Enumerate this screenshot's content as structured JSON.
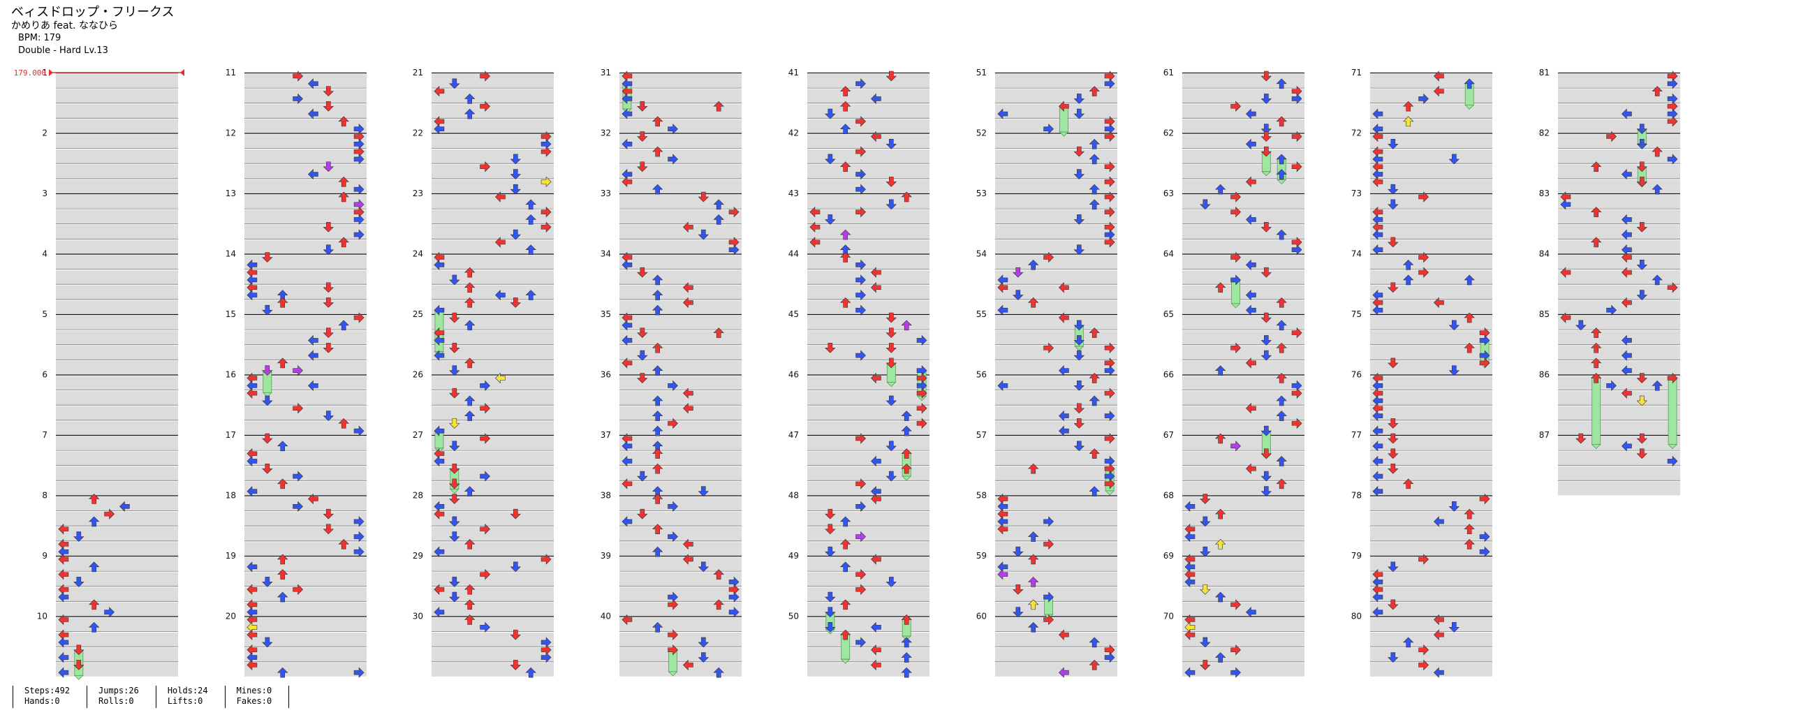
{
  "song": {
    "title": "ベィスドロップ・フリークス",
    "artist": "かめりあ feat. ななひら",
    "bpm": "BPM: 179",
    "difficulty": "Double - Hard Lv.13"
  },
  "bpm_marker": "179.000",
  "measure_labels": [
    "1",
    "2",
    "3",
    "4",
    "5",
    "6",
    "7",
    "8",
    "9",
    "10",
    "11",
    "12",
    "13",
    "14",
    "15",
    "16",
    "17",
    "18",
    "19",
    "20",
    "21",
    "22",
    "23",
    "24",
    "25",
    "26",
    "27",
    "28",
    "29",
    "30",
    "31",
    "32",
    "33",
    "34",
    "35",
    "36",
    "37",
    "38",
    "39",
    "40",
    "41",
    "42",
    "43",
    "44",
    "45",
    "46",
    "47",
    "48",
    "49",
    "50",
    "51",
    "52",
    "53",
    "54",
    "55",
    "56",
    "57",
    "58",
    "59",
    "60",
    "61",
    "62",
    "63",
    "64",
    "65",
    "66",
    "67",
    "68",
    "69",
    "70",
    "71",
    "72",
    "73",
    "74",
    "75",
    "76",
    "77",
    "78",
    "79",
    "80",
    "81",
    "82",
    "83",
    "84",
    "85",
    "86",
    "87"
  ],
  "stats": {
    "steps": "Steps:492",
    "hands": "Hands:0",
    "jumps": "Jumps:26",
    "rolls": "Rolls:0",
    "holds": "Holds:24",
    "lifts": "Lifts:0",
    "mines": "Mines:0",
    "fakes": "Fakes:0"
  },
  "colors": {
    "red_note": "#ee3333",
    "blue_note": "#3355ee",
    "yellow_note": "#f5e23a",
    "purple_note": "#b23ee6",
    "hold_body": "#9fe6a0",
    "lane_stripe": "#dcdcdc",
    "bpm_line": "#e03030"
  }
}
